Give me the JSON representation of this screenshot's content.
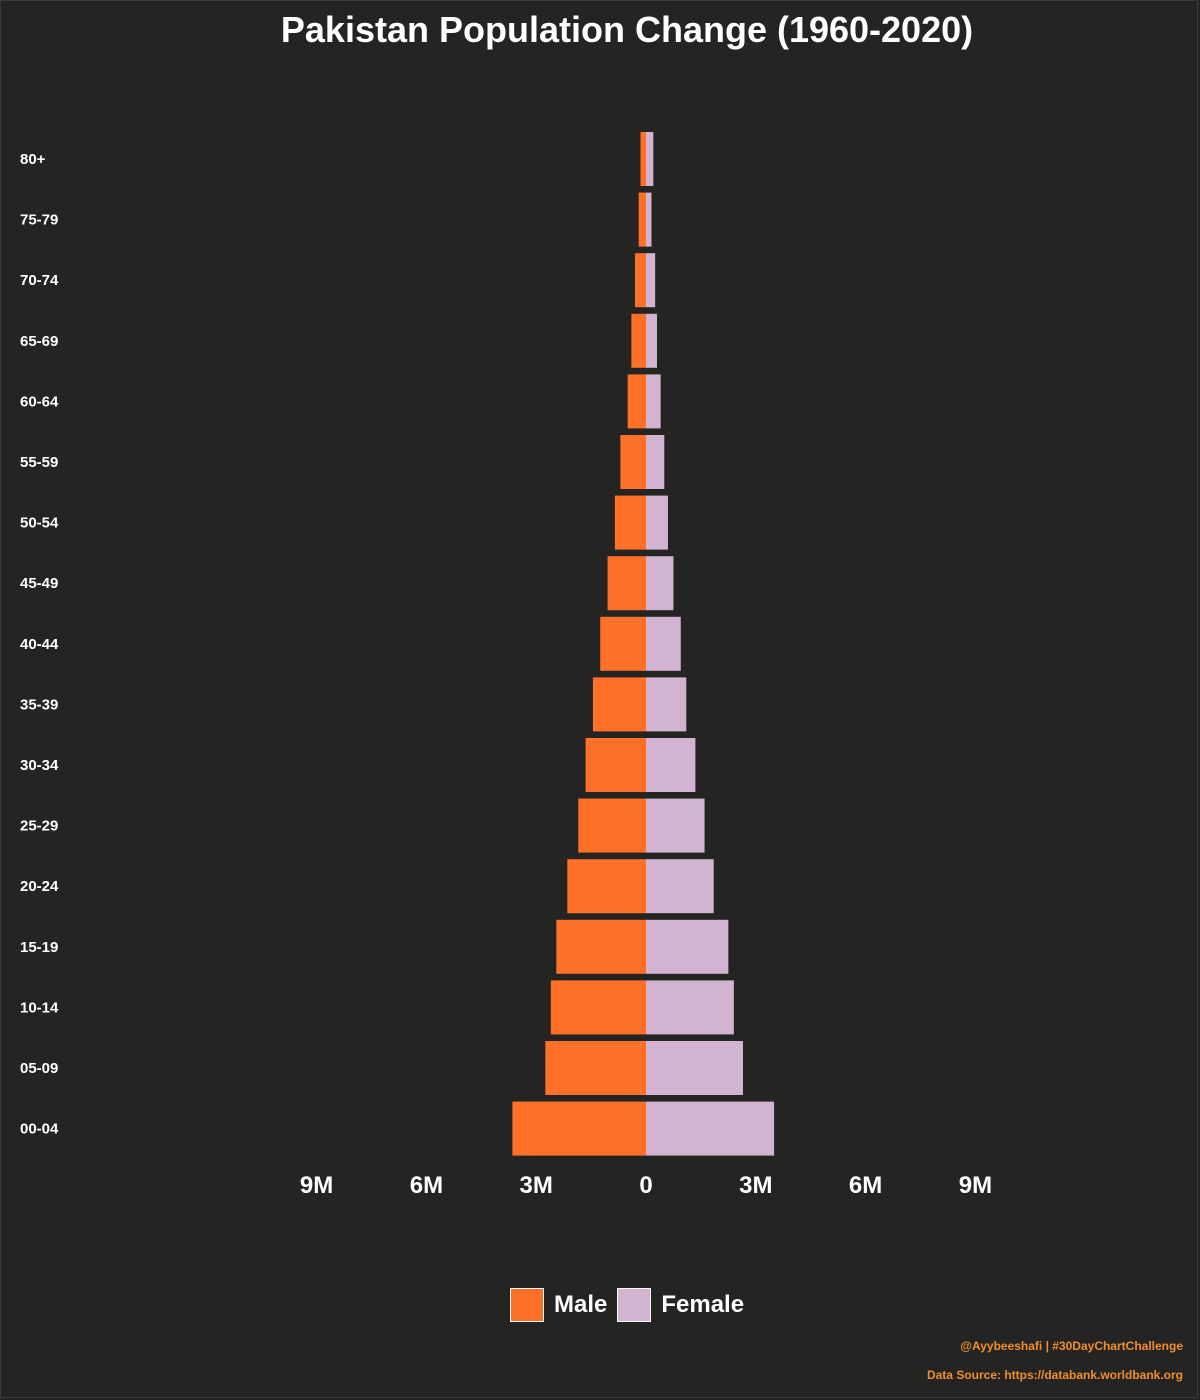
{
  "chart_data": {
    "type": "bar",
    "orientation": "horizontal",
    "layout": "population-pyramid",
    "title": "Pakistan Population Change (1960-2020)",
    "categories": [
      "80+",
      "75-79",
      "70-74",
      "65-69",
      "60-64",
      "55-59",
      "50-54",
      "45-49",
      "40-44",
      "35-39",
      "30-34",
      "25-29",
      "20-24",
      "15-19",
      "10-14",
      "05-09",
      "00-04"
    ],
    "series": [
      {
        "name": "Male",
        "color": "#ff7029",
        "values": [
          0.15,
          0.2,
          0.3,
          0.4,
          0.5,
          0.7,
          0.85,
          1.05,
          1.25,
          1.45,
          1.65,
          1.85,
          2.15,
          2.45,
          2.6,
          2.75,
          3.65
        ]
      },
      {
        "name": "Female",
        "color": "#d2b4d0",
        "values": [
          0.2,
          0.15,
          0.25,
          0.3,
          0.4,
          0.5,
          0.6,
          0.75,
          0.95,
          1.1,
          1.35,
          1.6,
          1.85,
          2.25,
          2.4,
          2.65,
          3.5
        ]
      }
    ],
    "value_unit": "millions",
    "xlim": [
      -9,
      9
    ],
    "xticks": [
      -9,
      -6,
      -3,
      0,
      3,
      6,
      9
    ],
    "xtick_labels": [
      "9M",
      "6M",
      "3M",
      "0",
      "3M",
      "6M",
      "9M"
    ],
    "xlabel": "",
    "ylabel": "",
    "grid": false,
    "legend_position": "bottom"
  },
  "caption": {
    "author": "@Ayybeeshafi | #30DayChartChallenge",
    "source": "Data Source: https://databank.worldbank.org"
  },
  "theme": {
    "background": "#242422",
    "text": "#ffffff",
    "caption": "#f28e2b"
  }
}
